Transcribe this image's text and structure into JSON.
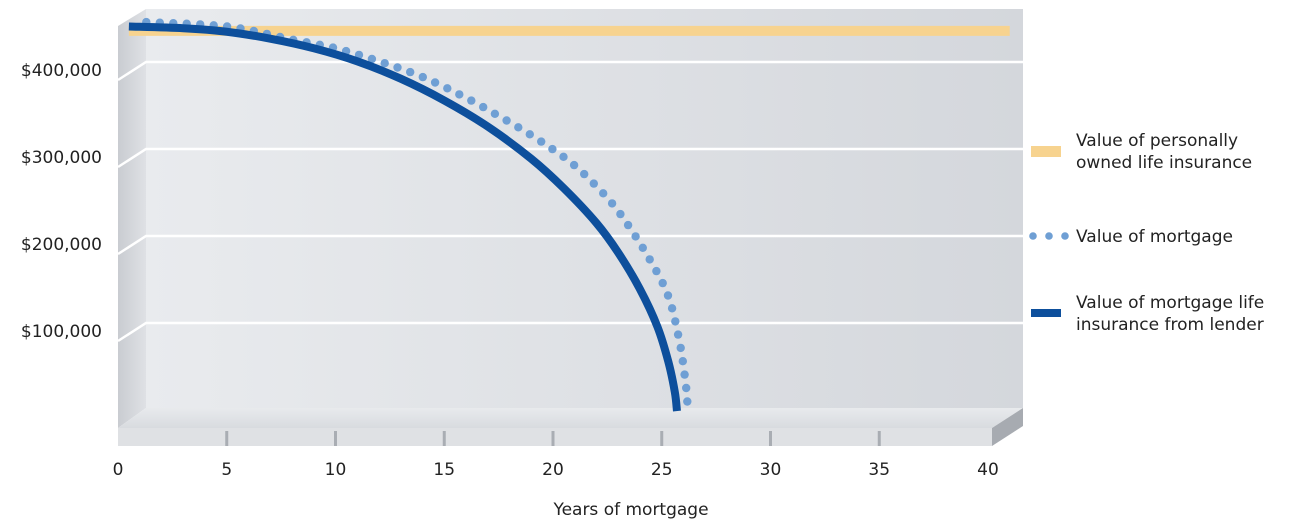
{
  "chart_data": {
    "type": "line",
    "xlabel": "Years of mortgage",
    "ylabel": "",
    "xlim": [
      0,
      40
    ],
    "ylim": [
      0,
      450000
    ],
    "x_ticks": [
      0,
      5,
      10,
      15,
      20,
      25,
      30,
      35,
      40
    ],
    "x_tick_labels": [
      "0",
      "5",
      "10",
      "15",
      "20",
      "25",
      "30",
      "35",
      "40"
    ],
    "y_ticks": [
      100000,
      200000,
      300000,
      400000
    ],
    "y_tick_labels": [
      "$100,000",
      "$200,000",
      "$300,000",
      "$400,000"
    ],
    "grid": true,
    "legend_position": "right",
    "series": [
      {
        "name": "Value of personally owned life insurance",
        "style": "thick-line",
        "color": "#F7D38F",
        "x": [
          0.5,
          41
        ],
        "y": [
          445000,
          445000
        ]
      },
      {
        "name": "Value of mortgage",
        "style": "dotted",
        "color": "#6F9FD4",
        "x": [
          1.3,
          5,
          8,
          10,
          12,
          14,
          16,
          18,
          19.5,
          21,
          22.5,
          23.5,
          24.5,
          25.3,
          25.8,
          26.1,
          26.2
        ],
        "y": [
          455000,
          450000,
          435000,
          425000,
          410000,
          392000,
          368000,
          340000,
          317000,
          290000,
          253000,
          220000,
          180000,
          140000,
          90000,
          40000,
          8000
        ]
      },
      {
        "name": "Value of mortgage life insurance from lender",
        "style": "thick-line",
        "color": "#0D4F9C",
        "x": [
          0.5,
          3,
          5,
          7,
          9,
          11,
          13,
          15,
          17,
          19,
          20.5,
          22,
          23,
          24,
          24.8,
          25.3,
          25.6,
          25.7
        ],
        "y": [
          450000,
          448000,
          444000,
          436000,
          425000,
          410000,
          390000,
          365000,
          335000,
          298000,
          264000,
          224000,
          190000,
          148000,
          105000,
          65000,
          30000,
          8000
        ]
      }
    ]
  }
}
